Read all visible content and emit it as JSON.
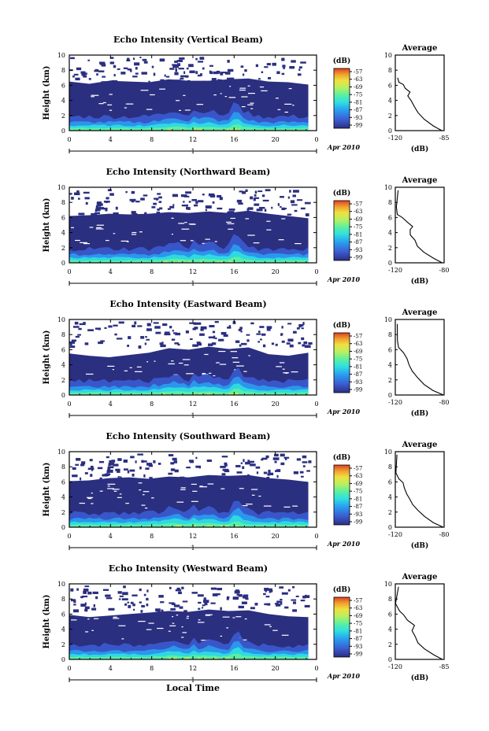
{
  "figure": {
    "shared_xlabel": "Local Time",
    "time_unit": "Apr 2010",
    "day_label": "1",
    "colorbar_unit": "(dB)",
    "colorbar_ticks": [
      "-57",
      "-63",
      "-69",
      "-75",
      "-81",
      "-87",
      "-93",
      "-99"
    ],
    "colors": [
      "#2b2f80",
      "#3b5bd0",
      "#2a9df0",
      "#30e0e0",
      "#5ef0a0",
      "#b8f060",
      "#f0e040",
      "#f0a030",
      "#e04020"
    ]
  },
  "chart_data": [
    {
      "type": "heatmap",
      "title": "Echo Intensity (Vertical Beam)",
      "ylabel": "Height (km)",
      "xlim": [
        0,
        24
      ],
      "ylim": [
        0,
        10
      ],
      "xticks": [
        "0",
        "4",
        "8",
        "12",
        "16",
        "20",
        "0"
      ],
      "yticks": [
        "0",
        "2",
        "4",
        "6",
        "8",
        "10"
      ],
      "avg": {
        "title": "Average",
        "xlabel": "(dB)",
        "xlim": [
          -120,
          -85
        ],
        "xticks": [
          "-120",
          "-85"
        ],
        "profile": [
          [
            -86,
            0
          ],
          [
            -93,
            0.6
          ],
          [
            -99,
            1.5
          ],
          [
            -103,
            2.4
          ],
          [
            -106,
            3.2
          ],
          [
            -109,
            3.9
          ],
          [
            -111,
            4.6
          ],
          [
            -110,
            5.1
          ],
          [
            -113,
            5.6
          ],
          [
            -115,
            6.1
          ],
          [
            -118,
            6.4
          ],
          [
            -119,
            7
          ]
        ]
      },
      "top": [
        6.5,
        6.2,
        6.6,
        6.5,
        6.4,
        6.8,
        6.6,
        6.6,
        6.8,
        6.9,
        6.5,
        6.4,
        6.1
      ]
    },
    {
      "type": "heatmap",
      "title": "Echo Intensity (Northward Beam)",
      "ylabel": "Height (km)",
      "xlim": [
        0,
        24
      ],
      "ylim": [
        0,
        10
      ],
      "xticks": [
        "0",
        "4",
        "8",
        "12",
        "16",
        "20",
        "0"
      ],
      "yticks": [
        "0",
        "2",
        "4",
        "6",
        "8",
        "10"
      ],
      "avg": {
        "title": "Average",
        "xlabel": "(dB)",
        "xlim": [
          -120,
          -80
        ],
        "xticks": [
          "-120",
          "-80"
        ],
        "profile": [
          [
            -81,
            0
          ],
          [
            -89,
            0.6
          ],
          [
            -96,
            1.4
          ],
          [
            -101,
            2.2
          ],
          [
            -104,
            3.0
          ],
          [
            -107,
            3.7
          ],
          [
            -108,
            4.4
          ],
          [
            -106,
            4.8
          ],
          [
            -110,
            5.4
          ],
          [
            -114,
            6.0
          ],
          [
            -118,
            6.4
          ],
          [
            -119,
            7.4
          ],
          [
            -118,
            9.6
          ]
        ]
      },
      "top": [
        6.2,
        6.3,
        6.5,
        6.4,
        6.5,
        6.7,
        6.6,
        6.8,
        6.6,
        6.9,
        6.5,
        6.2,
        5.9
      ]
    },
    {
      "type": "heatmap",
      "title": "Echo Intensity (Eastward Beam)",
      "ylabel": "Height (km)",
      "xlim": [
        0,
        24
      ],
      "ylim": [
        0,
        10
      ],
      "xticks": [
        "0",
        "4",
        "8",
        "12",
        "16",
        "20",
        "0"
      ],
      "yticks": [
        "0",
        "2",
        "4",
        "6",
        "8",
        "10"
      ],
      "avg": {
        "title": "Average",
        "xlabel": "(dB)",
        "xlim": [
          -120,
          -80
        ],
        "xticks": [
          "-120",
          "-80"
        ],
        "profile": [
          [
            -81,
            0
          ],
          [
            -89,
            0.6
          ],
          [
            -96,
            1.4
          ],
          [
            -102,
            2.3
          ],
          [
            -106,
            3.2
          ],
          [
            -109,
            4.0
          ],
          [
            -111,
            4.8
          ],
          [
            -114,
            5.6
          ],
          [
            -117,
            6.3
          ],
          [
            -119,
            7.2
          ],
          [
            -118,
            9.4
          ]
        ]
      },
      "top": [
        5.5,
        5.2,
        5.0,
        5.3,
        5.6,
        6.2,
        6.0,
        6.4,
        6.1,
        6.3,
        5.4,
        5.2,
        5.6
      ]
    },
    {
      "type": "heatmap",
      "title": "Echo Intensity (Southward Beam)",
      "ylabel": "Height (km)",
      "xlim": [
        0,
        24
      ],
      "ylim": [
        0,
        10
      ],
      "xticks": [
        "0",
        "4",
        "8",
        "12",
        "16",
        "20",
        "0"
      ],
      "yticks": [
        "0",
        "2",
        "4",
        "6",
        "8",
        "10"
      ],
      "avg": {
        "title": "Average",
        "xlabel": "(dB)",
        "xlim": [
          -120,
          -80
        ],
        "xticks": [
          "-120",
          "-80"
        ],
        "profile": [
          [
            -81,
            0
          ],
          [
            -89,
            0.6
          ],
          [
            -96,
            1.4
          ],
          [
            -101,
            2.2
          ],
          [
            -105,
            3.0
          ],
          [
            -108,
            3.8
          ],
          [
            -110,
            4.4
          ],
          [
            -112,
            5.2
          ],
          [
            -114,
            5.9
          ],
          [
            -117,
            6.4
          ],
          [
            -119,
            7.2
          ],
          [
            -118,
            9.6
          ]
        ]
      },
      "top": [
        6.1,
        6.2,
        6.5,
        6.6,
        6.4,
        6.7,
        6.6,
        6.9,
        6.8,
        6.9,
        6.5,
        6.3,
        6.0
      ]
    },
    {
      "type": "heatmap",
      "title": "Echo Intensity (Westward Beam)",
      "ylabel": "Height (km)",
      "xlim": [
        0,
        24
      ],
      "ylim": [
        0,
        10
      ],
      "xticks": [
        "0",
        "4",
        "8",
        "12",
        "16",
        "20",
        "0"
      ],
      "yticks": [
        "0",
        "2",
        "4",
        "6",
        "8",
        "10"
      ],
      "avg": {
        "title": "Average",
        "xlabel": "(dB)",
        "xlim": [
          -120,
          -85
        ],
        "xticks": [
          "-120",
          "-85"
        ],
        "profile": [
          [
            -86,
            0
          ],
          [
            -93,
            0.6
          ],
          [
            -99,
            1.4
          ],
          [
            -103,
            2.2
          ],
          [
            -106,
            3.0
          ],
          [
            -108,
            3.8
          ],
          [
            -107,
            4.5
          ],
          [
            -111,
            5.2
          ],
          [
            -114,
            5.9
          ],
          [
            -117,
            6.4
          ],
          [
            -119,
            7.4
          ],
          [
            -118,
            9.6
          ]
        ]
      },
      "top": [
        5.9,
        5.6,
        5.8,
        6.0,
        6.2,
        6.4,
        6.3,
        6.6,
        6.4,
        6.5,
        6.0,
        5.7,
        5.6
      ]
    }
  ]
}
